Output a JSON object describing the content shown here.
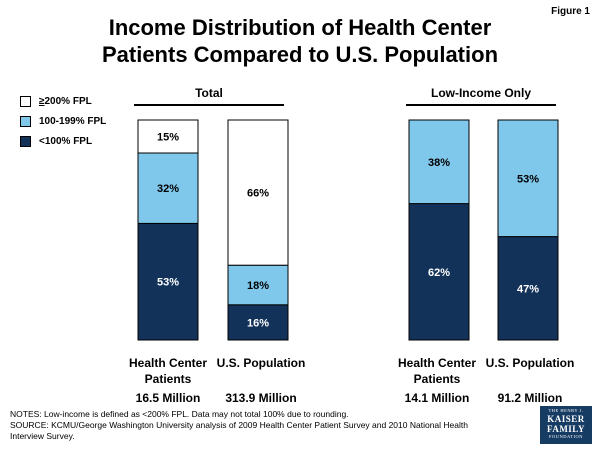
{
  "figure_label": "Figure 1",
  "title_line1": "Income Distribution of Health Center",
  "title_line2": "Patients Compared to U.S. Population",
  "legend": [
    {
      "prefix": "≥",
      "label": "200% FPL",
      "color": "#ffffff"
    },
    {
      "prefix": "",
      "label": "100-199% FPL",
      "color": "#7fc8ec"
    },
    {
      "prefix": "",
      "label": "<100% FPL",
      "color": "#13325a"
    }
  ],
  "notes": {
    "line1": "NOTES: Low-income is defined as <200% FPL. Data may not total 100% due to rounding.",
    "line2": "SOURCE: KCMU/George Washington University analysis of 2009 Health Center Patient Survey and 2010 National Health Interview Survey."
  },
  "logo": {
    "line1": "THE HENRY J.",
    "line2": "KAISER",
    "line3": "FAMILY",
    "line4": "FOUNDATION"
  },
  "chart_data": {
    "type": "bar",
    "stacked": true,
    "percent_scale": [
      0,
      100
    ],
    "series_order_bottom_to_top": [
      "<100% FPL",
      "100-199% FPL",
      "≥200% FPL"
    ],
    "groups": [
      {
        "title": "Total",
        "bars": [
          {
            "label_line1": "Health Center",
            "label_line2": "Patients",
            "total": "16.5 Million",
            "segments": [
              {
                "series": "<100% FPL",
                "value": 53,
                "label": "53%"
              },
              {
                "series": "100-199% FPL",
                "value": 32,
                "label": "32%"
              },
              {
                "series": "≥200% FPL",
                "value": 15,
                "label": "15%"
              }
            ]
          },
          {
            "label_line1": "U.S. Population",
            "label_line2": "",
            "total": "313.9 Million",
            "segments": [
              {
                "series": "<100% FPL",
                "value": 16,
                "label": "16%"
              },
              {
                "series": "100-199% FPL",
                "value": 18,
                "label": "18%"
              },
              {
                "series": "≥200% FPL",
                "value": 66,
                "label": "66%"
              }
            ]
          }
        ]
      },
      {
        "title": "Low-Income Only",
        "bars": [
          {
            "label_line1": "Health Center",
            "label_line2": "Patients",
            "total": "14.1 Million",
            "segments": [
              {
                "series": "<100% FPL",
                "value": 62,
                "label": "62%"
              },
              {
                "series": "100-199% FPL",
                "value": 38,
                "label": "38%"
              }
            ]
          },
          {
            "label_line1": "U.S. Population",
            "label_line2": "",
            "total": "91.2 Million",
            "segments": [
              {
                "series": "<100% FPL",
                "value": 47,
                "label": "47%"
              },
              {
                "series": "100-199% FPL",
                "value": 53,
                "label": "53%"
              }
            ]
          }
        ]
      }
    ]
  }
}
